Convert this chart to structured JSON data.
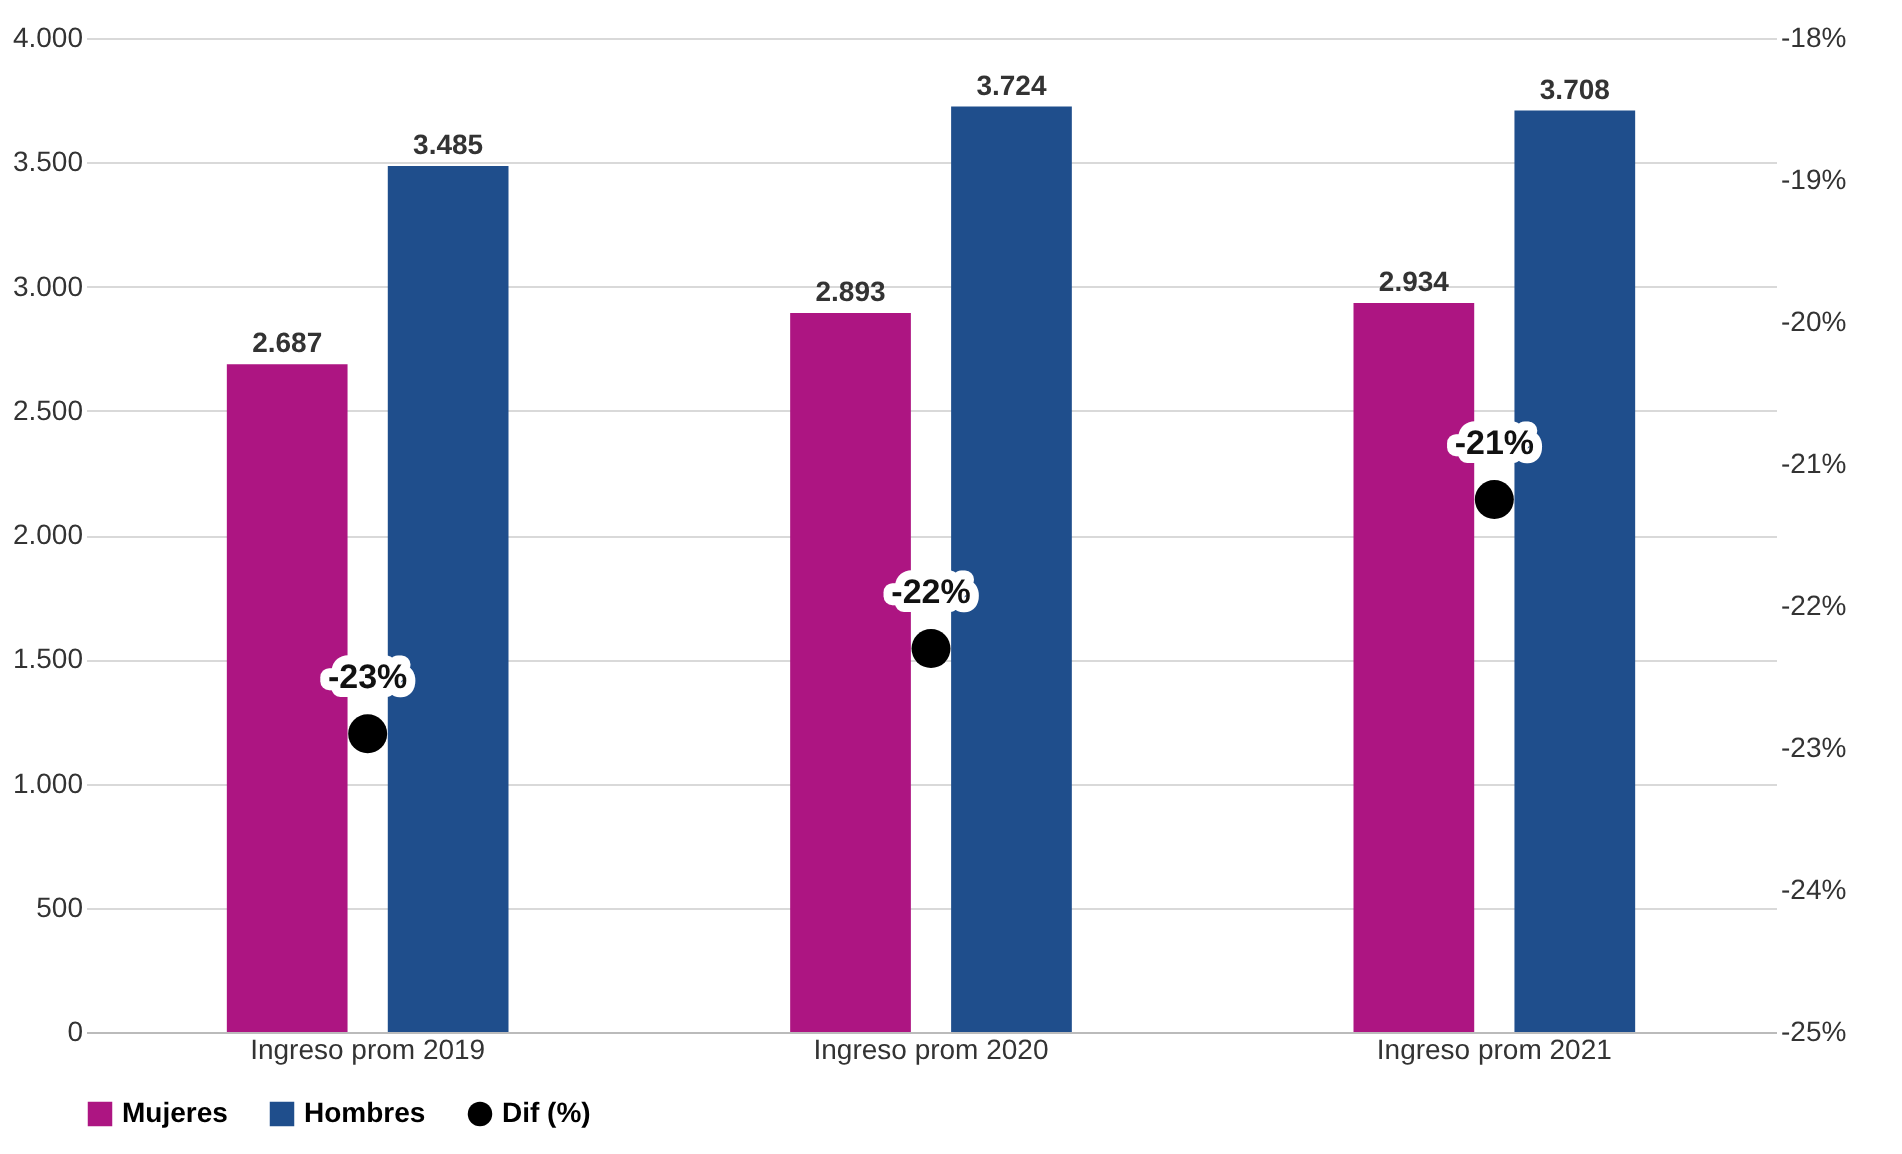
{
  "chart_data": {
    "type": "bar",
    "categories": [
      "Ingreso prom 2019",
      "Ingreso prom 2020",
      "Ingreso prom 2021"
    ],
    "series": [
      {
        "name": "Mujeres",
        "color": "#ad1582",
        "values": [
          2687,
          2893,
          2934
        ],
        "value_labels": [
          "2.687",
          "2.893",
          "2.934"
        ]
      },
      {
        "name": "Hombres",
        "color": "#1f4e8c",
        "values": [
          3485,
          3724,
          3708
        ],
        "value_labels": [
          "3.485",
          "3.724",
          "3.708"
        ]
      },
      {
        "name": "Dif (%)",
        "type": "scatter",
        "axis": "y2",
        "marker": "circle",
        "color": "#000000",
        "values": [
          -22.9,
          -22.3,
          -21.25
        ],
        "value_labels": [
          "-23%",
          "-22%",
          "-21%"
        ]
      }
    ],
    "ylim": [
      0,
      4000
    ],
    "yticks": [
      {
        "value": 0,
        "label": "0"
      },
      {
        "value": 500,
        "label": "500"
      },
      {
        "value": 1000,
        "label": "1.000"
      },
      {
        "value": 1500,
        "label": "1.500"
      },
      {
        "value": 2000,
        "label": "2.000"
      },
      {
        "value": 2500,
        "label": "2.500"
      },
      {
        "value": 3000,
        "label": "3.000"
      },
      {
        "value": 3500,
        "label": "3.500"
      },
      {
        "value": 4000,
        "label": "4.000"
      }
    ],
    "y2lim": [
      -25,
      -18
    ],
    "y2ticks": [
      {
        "value": -25,
        "label": "-25%"
      },
      {
        "value": -24,
        "label": "-24%"
      },
      {
        "value": -23,
        "label": "-23%"
      },
      {
        "value": -22,
        "label": "-22%"
      },
      {
        "value": -21,
        "label": "-21%"
      },
      {
        "value": -20,
        "label": "-20%"
      },
      {
        "value": -19,
        "label": "-19%"
      },
      {
        "value": -18,
        "label": "-18%"
      }
    ],
    "grid": "y",
    "legend": "bottom"
  }
}
